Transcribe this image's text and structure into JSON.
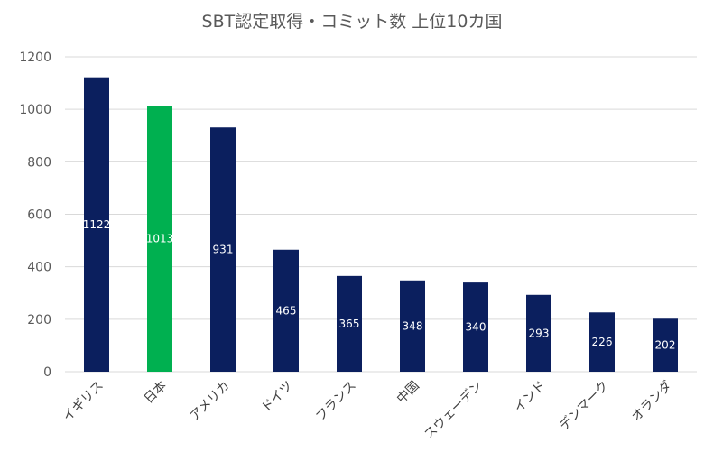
{
  "chart_data": {
    "type": "bar",
    "title": "SBT認定取得・コミット数 上位10カ国",
    "xlabel": "",
    "ylabel": "",
    "categories": [
      "イギリス",
      "日本",
      "アメリカ",
      "ドイツ",
      "フランス",
      "中国",
      "スウェーデン",
      "インド",
      "デンマーク",
      "オランダ"
    ],
    "values": [
      1122,
      1013,
      931,
      465,
      365,
      348,
      340,
      293,
      226,
      202
    ],
    "ylim": [
      0,
      1200
    ],
    "yticks": [
      0,
      200,
      400,
      600,
      800,
      1000,
      1200
    ],
    "grid": true,
    "data_labels": true,
    "colors": {
      "default_bar": "#0b1f5e",
      "highlight_bar": "#00b050",
      "highlight_category": "日本"
    }
  }
}
